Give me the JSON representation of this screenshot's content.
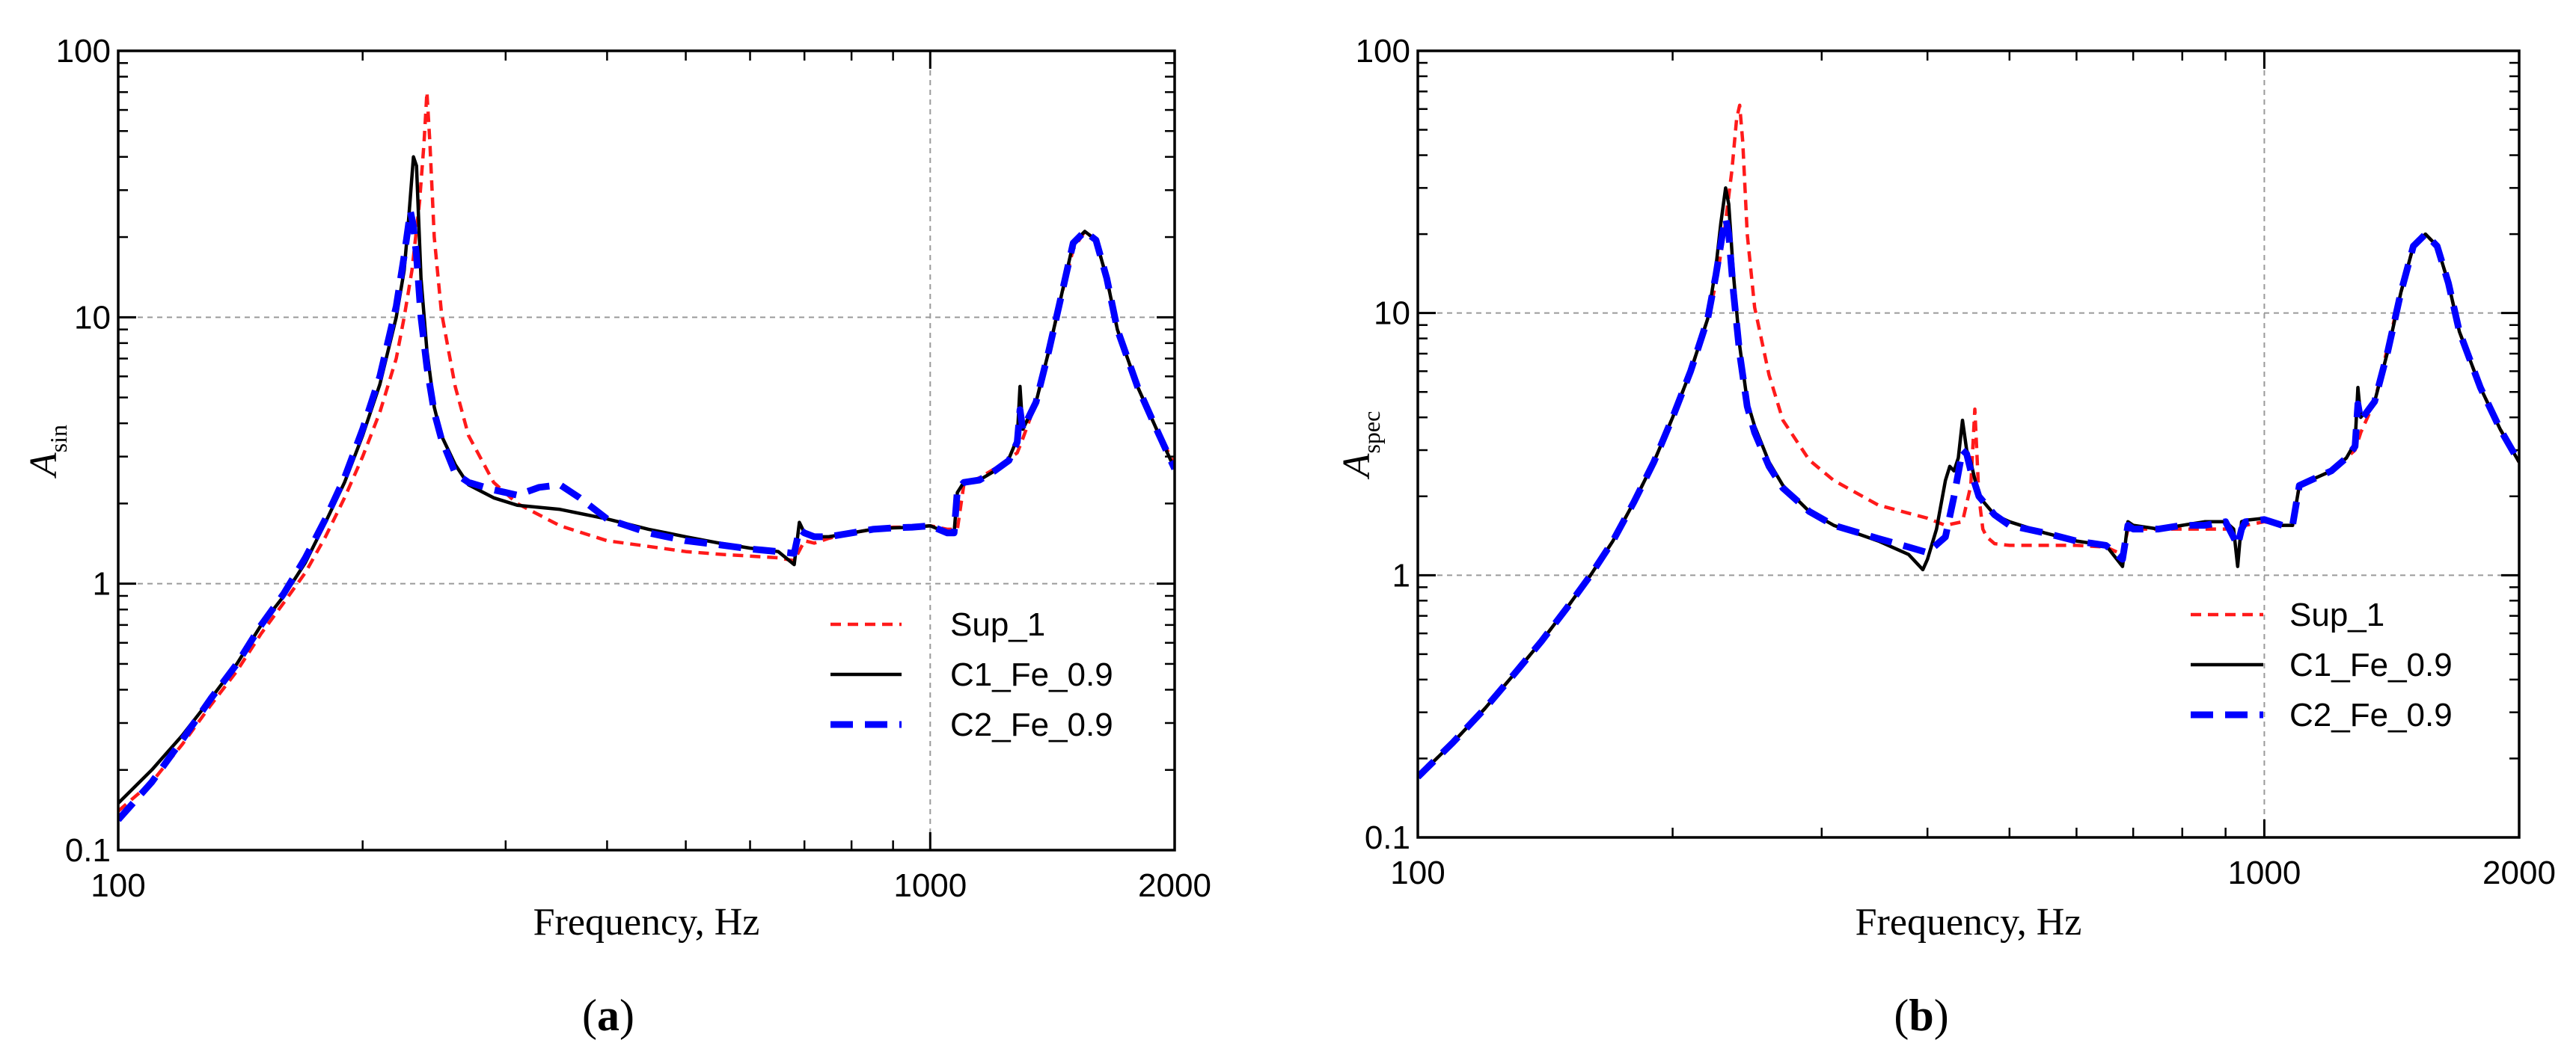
{
  "figure": {
    "colors": {
      "sup": "#ff1a1a",
      "c1": "#000000",
      "c2": "#0000ff",
      "grid": "#9a9a9a"
    }
  },
  "chart_data": [
    {
      "type": "line",
      "panel": "a",
      "panel_label": {
        "open": "(",
        "letter": "a",
        "close": ")"
      },
      "xlabel": "Frequency, Hz",
      "ylabel": {
        "main": "A",
        "sub": "sin"
      },
      "xscale": "log",
      "yscale": "log",
      "xlim": [
        100,
        2000
      ],
      "ylim": [
        0.1,
        100
      ],
      "xticks": [
        100,
        1000,
        2000
      ],
      "xtick_labels": [
        "100",
        "1000",
        "2000"
      ],
      "yticks": [
        0.1,
        1,
        10,
        100
      ],
      "ytick_labels": [
        "0.1",
        "1",
        "10",
        "100"
      ],
      "grid": true,
      "legend_position": "lower-right",
      "series": [
        {
          "name": "Sup_1",
          "style": "short-dash",
          "color": "#ff1a1a",
          "x": [
            100,
            110,
            120,
            130,
            140,
            150,
            160,
            170,
            180,
            190,
            200,
            210,
            220,
            225,
            230,
            235,
            238,
            240,
            242,
            245,
            250,
            260,
            270,
            290,
            310,
            350,
            400,
            450,
            500,
            550,
            600,
            650,
            680,
            700,
            720,
            750,
            800,
            850,
            900,
            950,
            1000,
            1050,
            1080,
            1100,
            1150,
            1200,
            1250,
            1280,
            1300,
            1350,
            1400,
            1450,
            1500,
            1550,
            1600,
            1650,
            1700,
            1800,
            1900,
            2000
          ],
          "y": [
            0.14,
            0.18,
            0.25,
            0.35,
            0.47,
            0.65,
            0.85,
            1.1,
            1.5,
            2.1,
            3.0,
            4.4,
            7.0,
            10.0,
            15,
            27,
            45,
            70,
            45,
            20,
            10.5,
            5.5,
            3.6,
            2.4,
            2.0,
            1.65,
            1.45,
            1.38,
            1.32,
            1.29,
            1.27,
            1.25,
            1.22,
            1.45,
            1.42,
            1.48,
            1.55,
            1.6,
            1.63,
            1.63,
            1.65,
            1.6,
            1.6,
            2.35,
            2.5,
            2.7,
            2.95,
            3.1,
            3.5,
            4.8,
            7.5,
            12,
            18,
            21,
            19.5,
            14,
            9,
            5.5,
            3.8,
            2.8
          ]
        },
        {
          "name": "C1_Fe_0.9",
          "style": "solid",
          "color": "#000000",
          "x": [
            100,
            110,
            120,
            130,
            140,
            150,
            160,
            170,
            180,
            190,
            200,
            210,
            220,
            225,
            228,
            231,
            233,
            236,
            240,
            245,
            250,
            260,
            270,
            290,
            310,
            350,
            400,
            450,
            500,
            550,
            600,
            650,
            680,
            690,
            700,
            720,
            750,
            800,
            850,
            900,
            950,
            1000,
            1050,
            1070,
            1080,
            1100,
            1150,
            1200,
            1250,
            1280,
            1290,
            1300,
            1350,
            1400,
            1450,
            1500,
            1550,
            1600,
            1650,
            1700,
            1800,
            1900,
            2000
          ],
          "y": [
            0.15,
            0.2,
            0.27,
            0.37,
            0.5,
            0.7,
            0.9,
            1.2,
            1.7,
            2.4,
            3.6,
            5.6,
            10,
            15,
            24,
            40,
            37,
            14,
            7.5,
            4.6,
            3.6,
            2.8,
            2.35,
            2.1,
            1.97,
            1.9,
            1.75,
            1.6,
            1.5,
            1.42,
            1.36,
            1.32,
            1.18,
            1.7,
            1.55,
            1.5,
            1.5,
            1.55,
            1.6,
            1.62,
            1.63,
            1.65,
            1.55,
            1.55,
            2.2,
            2.4,
            2.45,
            2.65,
            2.95,
            3.5,
            5.5,
            3.8,
            4.8,
            7.5,
            12,
            19,
            21,
            19.5,
            14,
            9,
            5.5,
            3.8,
            2.7
          ]
        },
        {
          "name": "C2_Fe_0.9",
          "style": "long-dash",
          "color": "#0000ff",
          "x": [
            100,
            110,
            120,
            130,
            140,
            150,
            160,
            170,
            180,
            190,
            200,
            210,
            220,
            225,
            229,
            231,
            233,
            236,
            240,
            245,
            250,
            260,
            270,
            290,
            300,
            310,
            330,
            350,
            370,
            400,
            450,
            500,
            550,
            600,
            650,
            680,
            690,
            700,
            720,
            750,
            800,
            850,
            900,
            950,
            1000,
            1050,
            1070,
            1080,
            1100,
            1150,
            1200,
            1250,
            1280,
            1290,
            1300,
            1350,
            1400,
            1450,
            1500,
            1550,
            1600,
            1650,
            1700,
            1800,
            1900,
            2000
          ],
          "y": [
            0.13,
            0.18,
            0.26,
            0.37,
            0.5,
            0.7,
            0.92,
            1.25,
            1.75,
            2.5,
            3.8,
            6,
            11,
            17,
            25,
            22,
            17,
            10,
            6.5,
            4.4,
            3.5,
            2.6,
            2.4,
            2.25,
            2.2,
            2.15,
            2.3,
            2.35,
            2.1,
            1.75,
            1.55,
            1.45,
            1.4,
            1.35,
            1.32,
            1.3,
            1.6,
            1.55,
            1.5,
            1.5,
            1.55,
            1.6,
            1.62,
            1.63,
            1.65,
            1.55,
            1.55,
            2.25,
            2.4,
            2.45,
            2.65,
            2.9,
            3.4,
            4.5,
            3.8,
            4.8,
            7.5,
            12,
            19,
            21,
            19.5,
            14,
            9,
            5.5,
            3.8,
            2.7
          ]
        }
      ]
    },
    {
      "type": "line",
      "panel": "b",
      "panel_label": {
        "open": "(",
        "letter": "b",
        "close": ")"
      },
      "xlabel": "Frequency, Hz",
      "ylabel": {
        "main": "A",
        "sub": "spec"
      },
      "xscale": "log",
      "yscale": "log",
      "xlim": [
        100,
        2000
      ],
      "ylim": [
        0.1,
        100
      ],
      "xticks": [
        100,
        1000,
        2000
      ],
      "xtick_labels": [
        "100",
        "1000",
        "2000"
      ],
      "yticks": [
        0.1,
        1,
        10,
        100
      ],
      "ytick_labels": [
        "0.1",
        "1",
        "10",
        "100"
      ],
      "grid": true,
      "legend_position": "lower-right",
      "series": [
        {
          "name": "Sup_1",
          "style": "short-dash",
          "color": "#ff1a1a",
          "x": [
            100,
            110,
            120,
            130,
            140,
            150,
            160,
            170,
            180,
            190,
            200,
            210,
            220,
            225,
            230,
            235,
            238,
            240,
            242,
            245,
            250,
            260,
            270,
            290,
            310,
            350,
            400,
            420,
            440,
            450,
            455,
            460,
            465,
            470,
            480,
            500,
            550,
            600,
            650,
            680,
            690,
            700,
            750,
            800,
            850,
            900,
            950,
            1000,
            1050,
            1080,
            1100,
            1150,
            1200,
            1250,
            1280,
            1300,
            1350,
            1400,
            1450,
            1500,
            1550,
            1600,
            1650,
            1700,
            1800,
            1900,
            2000
          ],
          "y": [
            0.17,
            0.23,
            0.31,
            0.42,
            0.56,
            0.75,
            1.0,
            1.35,
            1.9,
            2.7,
            4.0,
            6,
            9.5,
            13,
            20,
            35,
            55,
            62,
            45,
            20,
            10.5,
            5.8,
            3.9,
            2.75,
            2.3,
            1.85,
            1.65,
            1.55,
            1.6,
            2.2,
            4.3,
            2.0,
            1.5,
            1.4,
            1.32,
            1.3,
            1.3,
            1.3,
            1.28,
            1.2,
            1.5,
            1.5,
            1.5,
            1.5,
            1.5,
            1.5,
            1.55,
            1.6,
            1.55,
            1.55,
            2.2,
            2.35,
            2.5,
            2.8,
            3.0,
            3.5,
            4.6,
            7.5,
            12,
            18,
            20,
            18,
            13,
            8.5,
            5.2,
            3.6,
            2.7
          ]
        },
        {
          "name": "C1_Fe_0.9",
          "style": "solid",
          "color": "#000000",
          "x": [
            100,
            110,
            120,
            130,
            140,
            150,
            160,
            170,
            180,
            190,
            200,
            210,
            220,
            225,
            228,
            231,
            233,
            236,
            240,
            245,
            250,
            260,
            270,
            290,
            310,
            350,
            380,
            395,
            400,
            410,
            420,
            425,
            430,
            435,
            440,
            445,
            450,
            460,
            480,
            500,
            550,
            600,
            650,
            680,
            690,
            700,
            750,
            800,
            850,
            900,
            920,
            930,
            940,
            950,
            1000,
            1050,
            1080,
            1100,
            1150,
            1200,
            1250,
            1280,
            1290,
            1300,
            1350,
            1400,
            1450,
            1500,
            1550,
            1600,
            1650,
            1700,
            1800,
            1900,
            2000
          ],
          "y": [
            0.17,
            0.23,
            0.31,
            0.42,
            0.56,
            0.75,
            1.0,
            1.35,
            1.9,
            2.7,
            4.0,
            6,
            9.5,
            15,
            22,
            30,
            26,
            14,
            7.5,
            4.6,
            3.7,
            2.7,
            2.2,
            1.75,
            1.55,
            1.35,
            1.2,
            1.05,
            1.15,
            1.5,
            2.3,
            2.6,
            2.5,
            2.8,
            3.9,
            3.0,
            2.7,
            2.0,
            1.7,
            1.6,
            1.45,
            1.35,
            1.3,
            1.08,
            1.6,
            1.55,
            1.5,
            1.55,
            1.6,
            1.6,
            1.5,
            1.08,
            1.6,
            1.62,
            1.65,
            1.55,
            1.55,
            2.2,
            2.35,
            2.5,
            2.8,
            3.2,
            5.2,
            4.0,
            4.6,
            7.2,
            12,
            18,
            20,
            18,
            13,
            8.5,
            5.2,
            3.6,
            2.7
          ]
        },
        {
          "name": "C2_Fe_0.9",
          "style": "long-dash",
          "color": "#0000ff",
          "x": [
            100,
            110,
            120,
            130,
            140,
            150,
            160,
            170,
            180,
            190,
            200,
            210,
            220,
            225,
            229,
            231,
            233,
            236,
            240,
            245,
            250,
            260,
            270,
            290,
            310,
            350,
            380,
            400,
            420,
            430,
            440,
            445,
            450,
            460,
            480,
            500,
            550,
            600,
            650,
            680,
            690,
            700,
            750,
            800,
            850,
            900,
            930,
            940,
            950,
            1000,
            1050,
            1080,
            1100,
            1150,
            1200,
            1250,
            1280,
            1290,
            1300,
            1350,
            1400,
            1450,
            1500,
            1550,
            1600,
            1650,
            1700,
            1800,
            1900,
            2000
          ],
          "y": [
            0.17,
            0.23,
            0.31,
            0.42,
            0.56,
            0.75,
            1.0,
            1.35,
            1.9,
            2.7,
            4.0,
            6,
            9.5,
            14,
            20,
            23,
            20,
            12,
            7,
            4.4,
            3.5,
            2.6,
            2.15,
            1.75,
            1.55,
            1.38,
            1.28,
            1.22,
            1.4,
            2.0,
            3.0,
            2.9,
            2.5,
            2.0,
            1.7,
            1.55,
            1.45,
            1.35,
            1.3,
            1.15,
            1.55,
            1.5,
            1.5,
            1.55,
            1.55,
            1.6,
            1.3,
            1.5,
            1.6,
            1.63,
            1.55,
            1.55,
            2.2,
            2.35,
            2.5,
            2.8,
            3.1,
            4.5,
            3.9,
            4.6,
            7.2,
            12,
            18,
            20,
            18,
            13,
            8.5,
            5.2,
            3.6,
            2.7
          ]
        }
      ]
    }
  ]
}
